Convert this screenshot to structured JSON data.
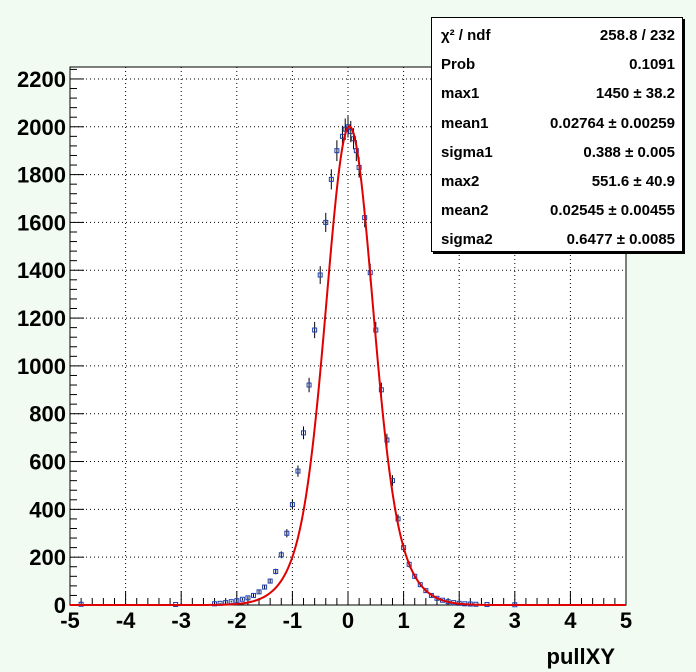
{
  "chart_data": {
    "type": "scatter",
    "xlabel": "pullXY",
    "ylabel": "",
    "xlim": [
      -5,
      5
    ],
    "ylim": [
      0,
      2250
    ],
    "x_ticks": [
      -5,
      -4,
      -3,
      -2,
      -1,
      0,
      1,
      2,
      3,
      4,
      5
    ],
    "y_ticks": [
      0,
      200,
      400,
      600,
      800,
      1000,
      1200,
      1400,
      1600,
      1800,
      2000,
      2200
    ],
    "grid": true,
    "series": [
      {
        "kind": "histogram-points",
        "color": "#1e3fb0",
        "x": [
          -4.8,
          -3.1,
          -2.4,
          -2.3,
          -2.2,
          -2.1,
          -2.0,
          -1.9,
          -1.8,
          -1.7,
          -1.6,
          -1.5,
          -1.4,
          -1.3,
          -1.2,
          -1.1,
          -1.0,
          -0.9,
          -0.8,
          -0.7,
          -0.6,
          -0.5,
          -0.4,
          -0.3,
          -0.2,
          -0.1,
          -0.05,
          0.0,
          0.05,
          0.1,
          0.15,
          0.2,
          0.3,
          0.4,
          0.5,
          0.6,
          0.7,
          0.8,
          0.9,
          1.0,
          1.1,
          1.2,
          1.3,
          1.4,
          1.5,
          1.6,
          1.7,
          1.8,
          1.9,
          2.0,
          2.1,
          2.2,
          2.3,
          2.5,
          3.0
        ],
        "y": [
          3,
          2,
          5,
          7,
          10,
          14,
          18,
          24,
          30,
          40,
          55,
          75,
          100,
          140,
          210,
          300,
          420,
          560,
          720,
          920,
          1150,
          1380,
          1600,
          1780,
          1900,
          1960,
          1990,
          2000,
          1980,
          1950,
          1900,
          1830,
          1620,
          1390,
          1150,
          900,
          690,
          520,
          360,
          240,
          170,
          120,
          85,
          60,
          40,
          28,
          20,
          14,
          10,
          7,
          5,
          4,
          3,
          2,
          1
        ]
      },
      {
        "kind": "fit",
        "name": "double gaussian fit",
        "color": "#e00000",
        "function": "max1*exp(-0.5*((x-mean1)/sigma1)^2) + max2*exp(-0.5*((x-mean2)/sigma2)^2)"
      }
    ],
    "stats": [
      {
        "name": "χ² / ndf",
        "value": "258.8 / 232"
      },
      {
        "name": "Prob",
        "value": "0.1091"
      },
      {
        "name": "max1",
        "value": "1450 ± 38.2"
      },
      {
        "name": "mean1",
        "value": "0.02764 ± 0.00259"
      },
      {
        "name": "sigma1",
        "value": "0.388 ± 0.005"
      },
      {
        "name": "max2",
        "value": "551.6 ± 40.9"
      },
      {
        "name": "mean2",
        "value": "0.02545 ± 0.00455"
      },
      {
        "name": "sigma2",
        "value": "0.6477 ± 0.0085"
      }
    ],
    "fit_params": {
      "max1": 1450,
      "mean1": 0.02764,
      "sigma1": 0.388,
      "max2": 551.6,
      "mean2": 0.02545,
      "sigma2": 0.6477
    }
  }
}
